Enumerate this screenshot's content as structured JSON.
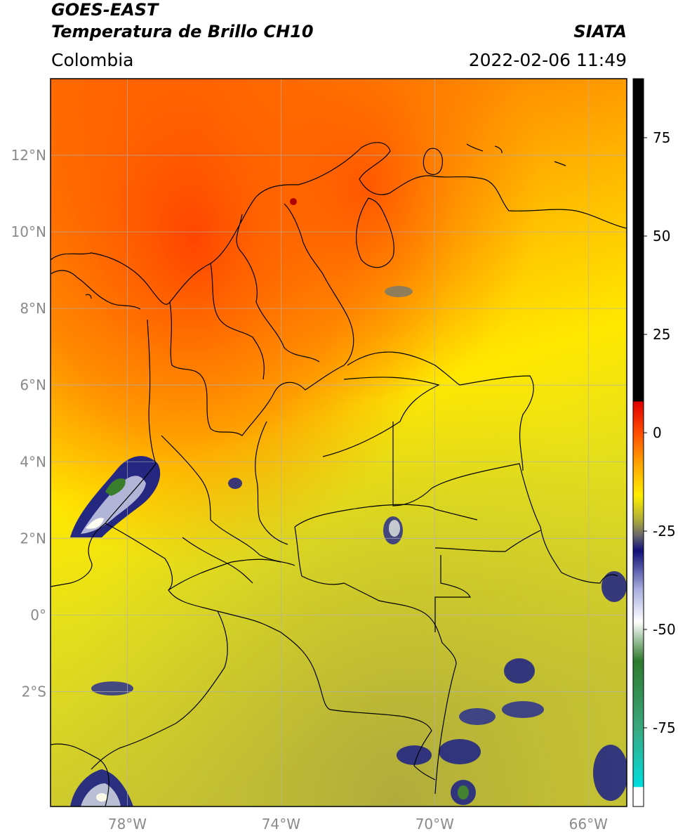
{
  "header": {
    "satellite": "GOES-EAST",
    "product": "Temperatura de Brillo CH10",
    "agency": "SIATA",
    "region": "Colombia",
    "datetime": "2022-02-06 11:49"
  },
  "map": {
    "lat_ticks": [
      {
        "value": 12,
        "label": "12°N"
      },
      {
        "value": 10,
        "label": "10°N"
      },
      {
        "value": 8,
        "label": "8°N"
      },
      {
        "value": 6,
        "label": "6°N"
      },
      {
        "value": 4,
        "label": "4°N"
      },
      {
        "value": 2,
        "label": "2°N"
      },
      {
        "value": 0,
        "label": "0°"
      },
      {
        "value": -2,
        "label": "2°S"
      }
    ],
    "lon_ticks": [
      {
        "value": -78,
        "label": "78°W"
      },
      {
        "value": -74,
        "label": "74°W"
      },
      {
        "value": -70,
        "label": "70°W"
      },
      {
        "value": -66,
        "label": "66°W"
      }
    ],
    "extent": {
      "lon_min": -80,
      "lon_max": -65,
      "lat_min": -5,
      "lat_max": 14
    }
  },
  "colorbar": {
    "ticks": [
      {
        "value": 75,
        "label": "75"
      },
      {
        "value": 50,
        "label": "50"
      },
      {
        "value": 25,
        "label": "25"
      },
      {
        "value": 0,
        "label": "0"
      },
      {
        "value": -25,
        "label": "-25"
      },
      {
        "value": -50,
        "label": "-50"
      },
      {
        "value": -75,
        "label": "-75"
      }
    ],
    "range": [
      -95,
      90
    ],
    "stops": [
      {
        "value": 90,
        "color": "#000000"
      },
      {
        "value": 8,
        "color": "#000000"
      },
      {
        "value": 7.9,
        "color": "#e00000"
      },
      {
        "value": 0,
        "color": "#ff4d00"
      },
      {
        "value": -8,
        "color": "#ffa500"
      },
      {
        "value": -16,
        "color": "#ffee00"
      },
      {
        "value": -22,
        "color": "#b0ad38"
      },
      {
        "value": -26,
        "color": "#6a6a6a"
      },
      {
        "value": -30,
        "color": "#10107a"
      },
      {
        "value": -40,
        "color": "#aab0e0"
      },
      {
        "value": -48,
        "color": "#ffffff"
      },
      {
        "value": -58,
        "color": "#2e7a2e"
      },
      {
        "value": -75,
        "color": "#3aa87e"
      },
      {
        "value": -90,
        "color": "#00dede"
      },
      {
        "value": -90.1,
        "color": "#ffffff"
      },
      {
        "value": -95,
        "color": "#ffffff"
      }
    ]
  }
}
